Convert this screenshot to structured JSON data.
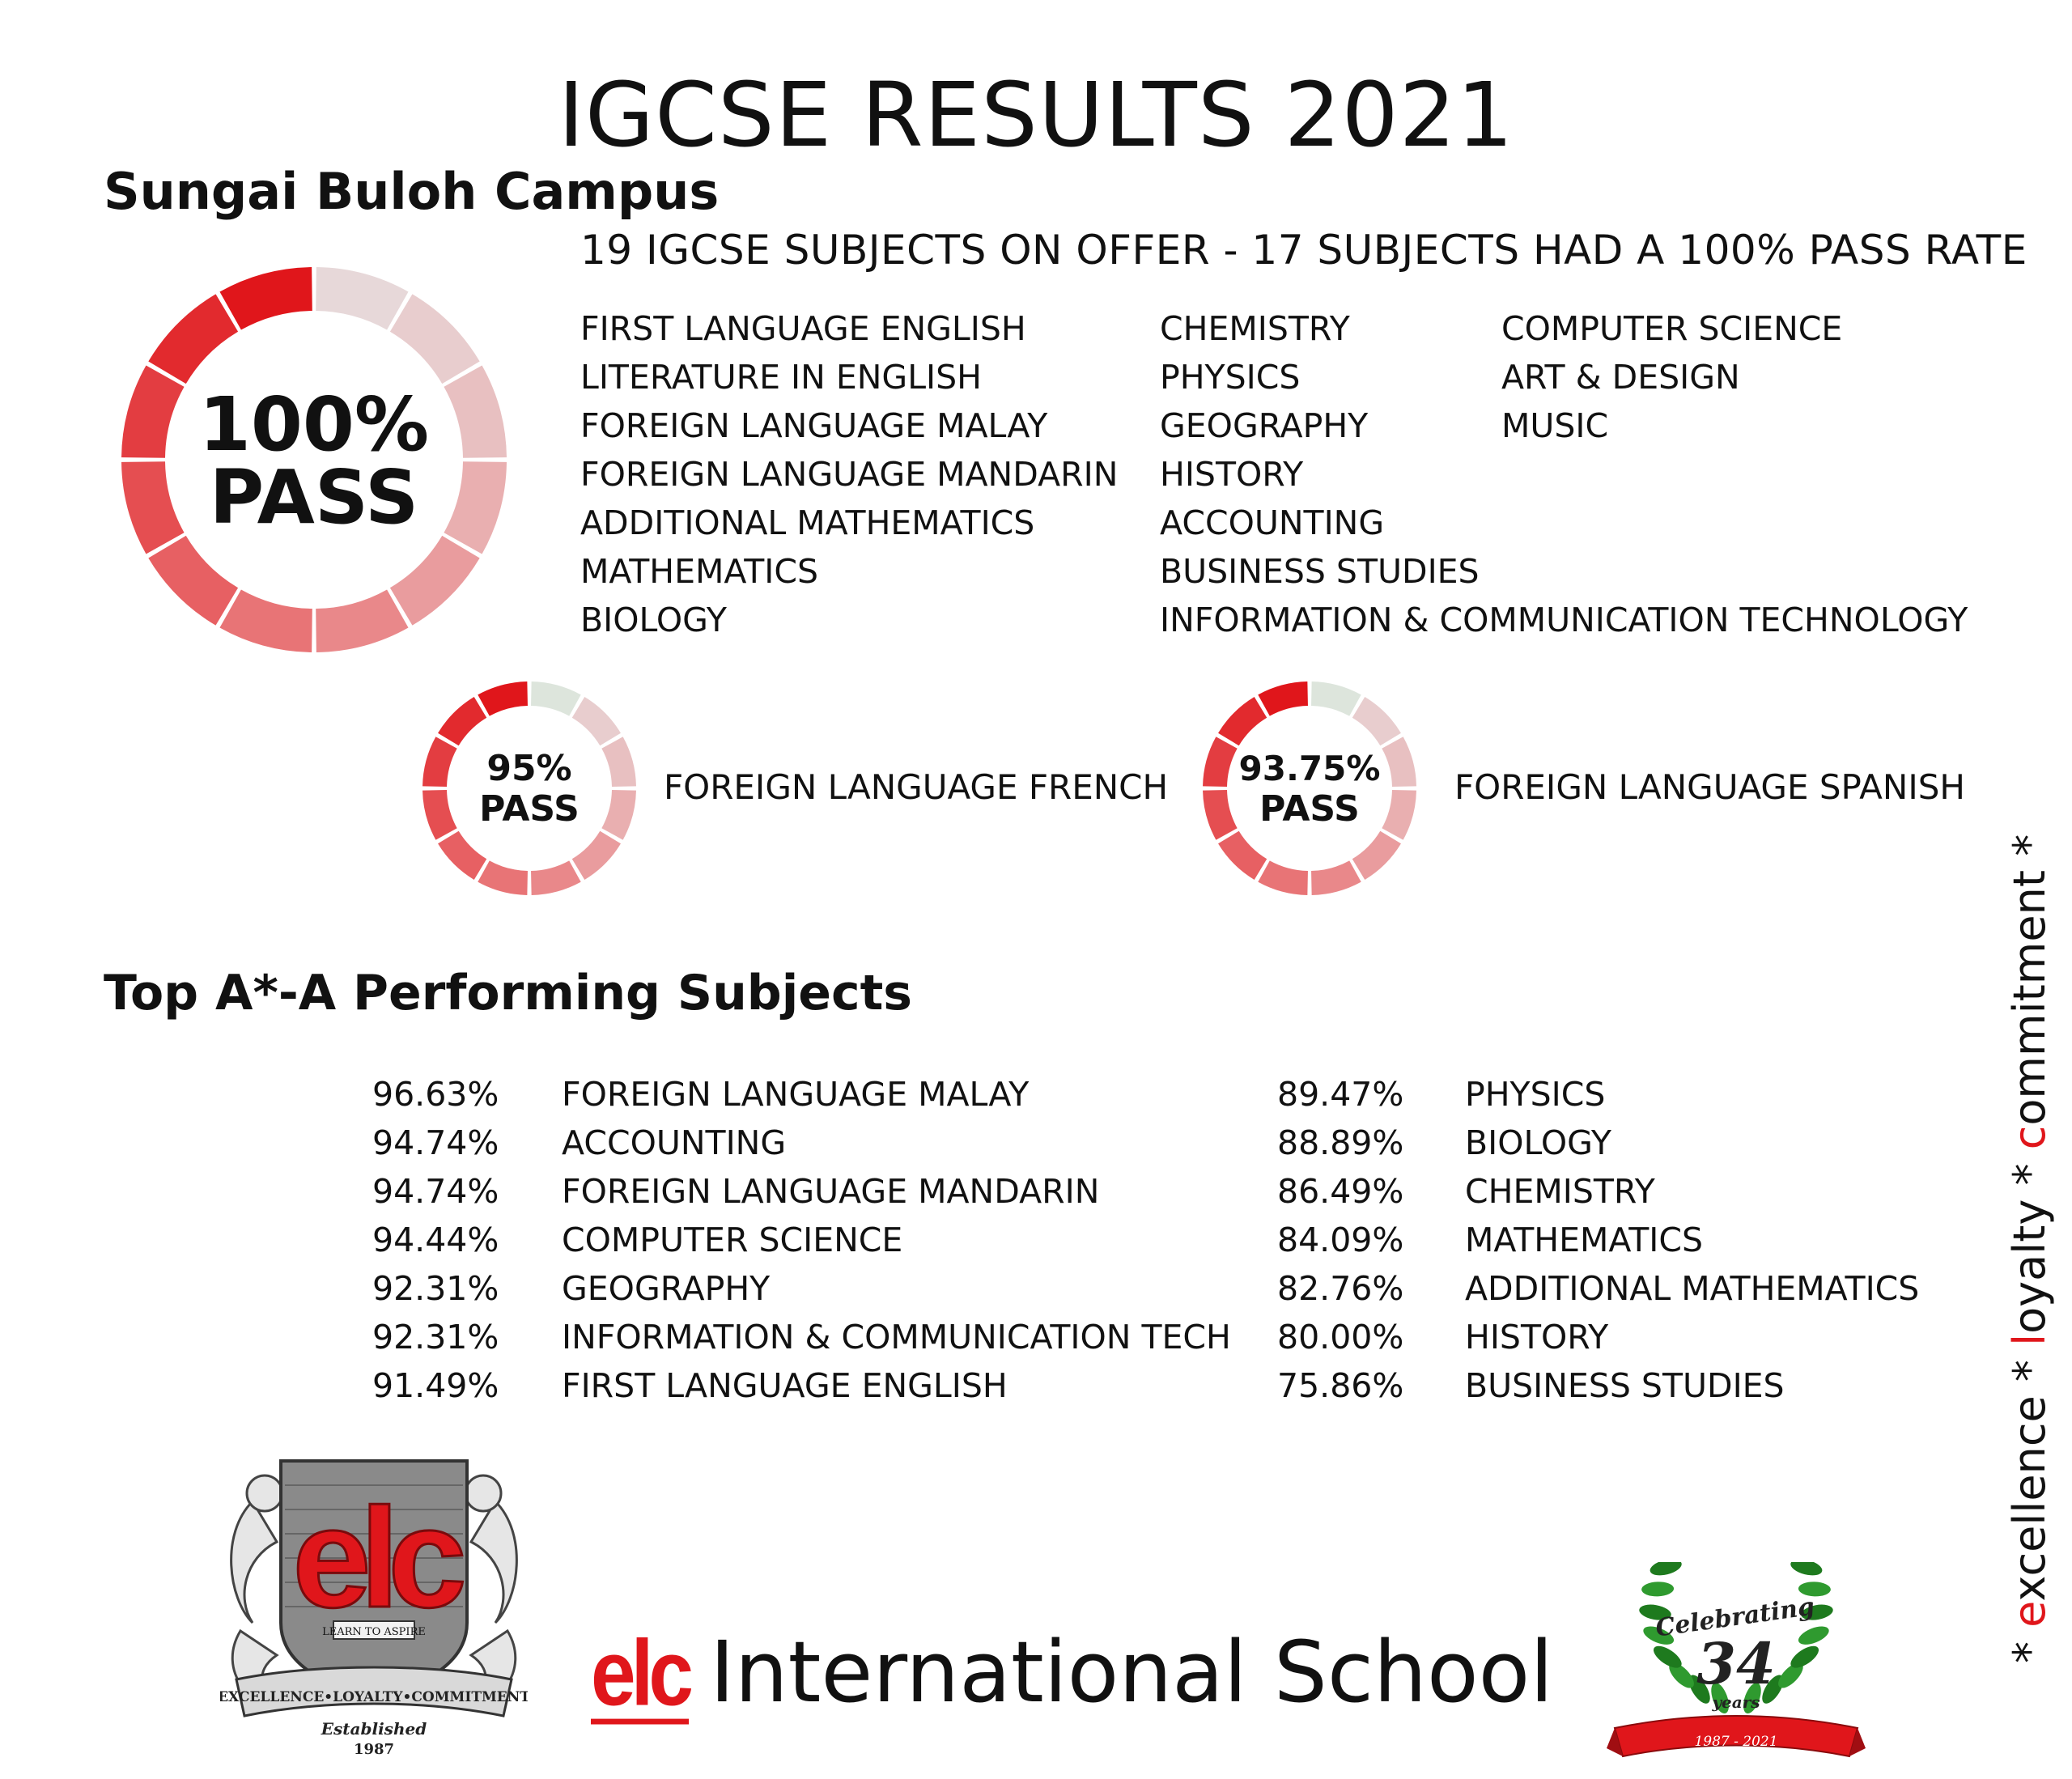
{
  "title": "IGCSE RESULTS 2021",
  "campus": "Sungai Buloh Campus",
  "offer_line": "19 IGCSE SUBJECTS ON OFFER - 17 SUBJECTS HAD A 100% PASS RATE",
  "main_pass": {
    "line1": "100%",
    "line2": "PASS",
    "pass_fraction": 1.0
  },
  "full_pass_subjects": {
    "col1": [
      "FIRST LANGUAGE ENGLISH",
      "LITERATURE IN ENGLISH",
      "FOREIGN LANGUAGE MALAY",
      "FOREIGN LANGUAGE MANDARIN",
      "ADDITIONAL MATHEMATICS",
      "MATHEMATICS",
      "BIOLOGY"
    ],
    "col2": [
      "CHEMISTRY",
      "PHYSICS",
      "GEOGRAPHY",
      "HISTORY",
      "ACCOUNTING",
      "BUSINESS STUDIES",
      "INFORMATION & COMMUNICATION TECHNOLOGY"
    ],
    "col3": [
      "COMPUTER SCIENCE",
      "ART & DESIGN",
      "MUSIC"
    ]
  },
  "partial_pass": [
    {
      "percent": "95%",
      "pass": "PASS",
      "subject": "FOREIGN LANGUAGE FRENCH",
      "pass_fraction": 0.95
    },
    {
      "percent": "93.75%",
      "pass": "PASS",
      "subject": "FOREIGN LANGUAGE SPANISH",
      "pass_fraction": 0.9375
    }
  ],
  "top_heading": "Top A*-A Performing Subjects",
  "top_subjects": {
    "left": [
      {
        "pct": "96.63%",
        "subject": "FOREIGN LANGUAGE MALAY"
      },
      {
        "pct": "94.74%",
        "subject": "ACCOUNTING"
      },
      {
        "pct": "94.74%",
        "subject": "FOREIGN LANGUAGE MANDARIN"
      },
      {
        "pct": "94.44%",
        "subject": "COMPUTER SCIENCE"
      },
      {
        "pct": "92.31%",
        "subject": "GEOGRAPHY"
      },
      {
        "pct": "92.31%",
        "subject": "INFORMATION & COMMUNICATION TECH"
      },
      {
        "pct": "91.49%",
        "subject": "FIRST LANGUAGE ENGLISH"
      }
    ],
    "right": [
      {
        "pct": "89.47%",
        "subject": "PHYSICS"
      },
      {
        "pct": "88.89%",
        "subject": "BIOLOGY"
      },
      {
        "pct": "86.49%",
        "subject": "CHEMISTRY"
      },
      {
        "pct": "84.09%",
        "subject": "MATHEMATICS"
      },
      {
        "pct": "82.76%",
        "subject": "ADDITIONAL MATHEMATICS"
      },
      {
        "pct": "80.00%",
        "subject": "HISTORY"
      },
      {
        "pct": "75.86%",
        "subject": "BUSINESS STUDIES"
      }
    ]
  },
  "motto": {
    "e_initial": "e",
    "e_rest": "xcellence",
    "l_initial": "l",
    "l_rest": "oyalty",
    "c_initial": "c",
    "c_rest": "ommitment",
    "sep": "*"
  },
  "brand": {
    "logo_text": "elc",
    "name": "International School"
  },
  "crest": {
    "logo_text": "elc",
    "tagline": "LEARN TO ASPIRE",
    "banner": "EXCELLENCE•LOYALTY•COMMITMENT",
    "established": "Established",
    "year": "1987"
  },
  "anniversary": {
    "celebrating": "Celebrating",
    "number": "34",
    "years": "years",
    "range": "1987 - 2021"
  },
  "colors": {
    "accent": "#e0161b",
    "donut_gradient": [
      "#e0161b",
      "#e33a3e",
      "#e6595c",
      "#e97e80",
      "#e9a3a5",
      "#e8c3c4",
      "#e7d8d9"
    ],
    "fail_segment": "#dde5dc"
  }
}
